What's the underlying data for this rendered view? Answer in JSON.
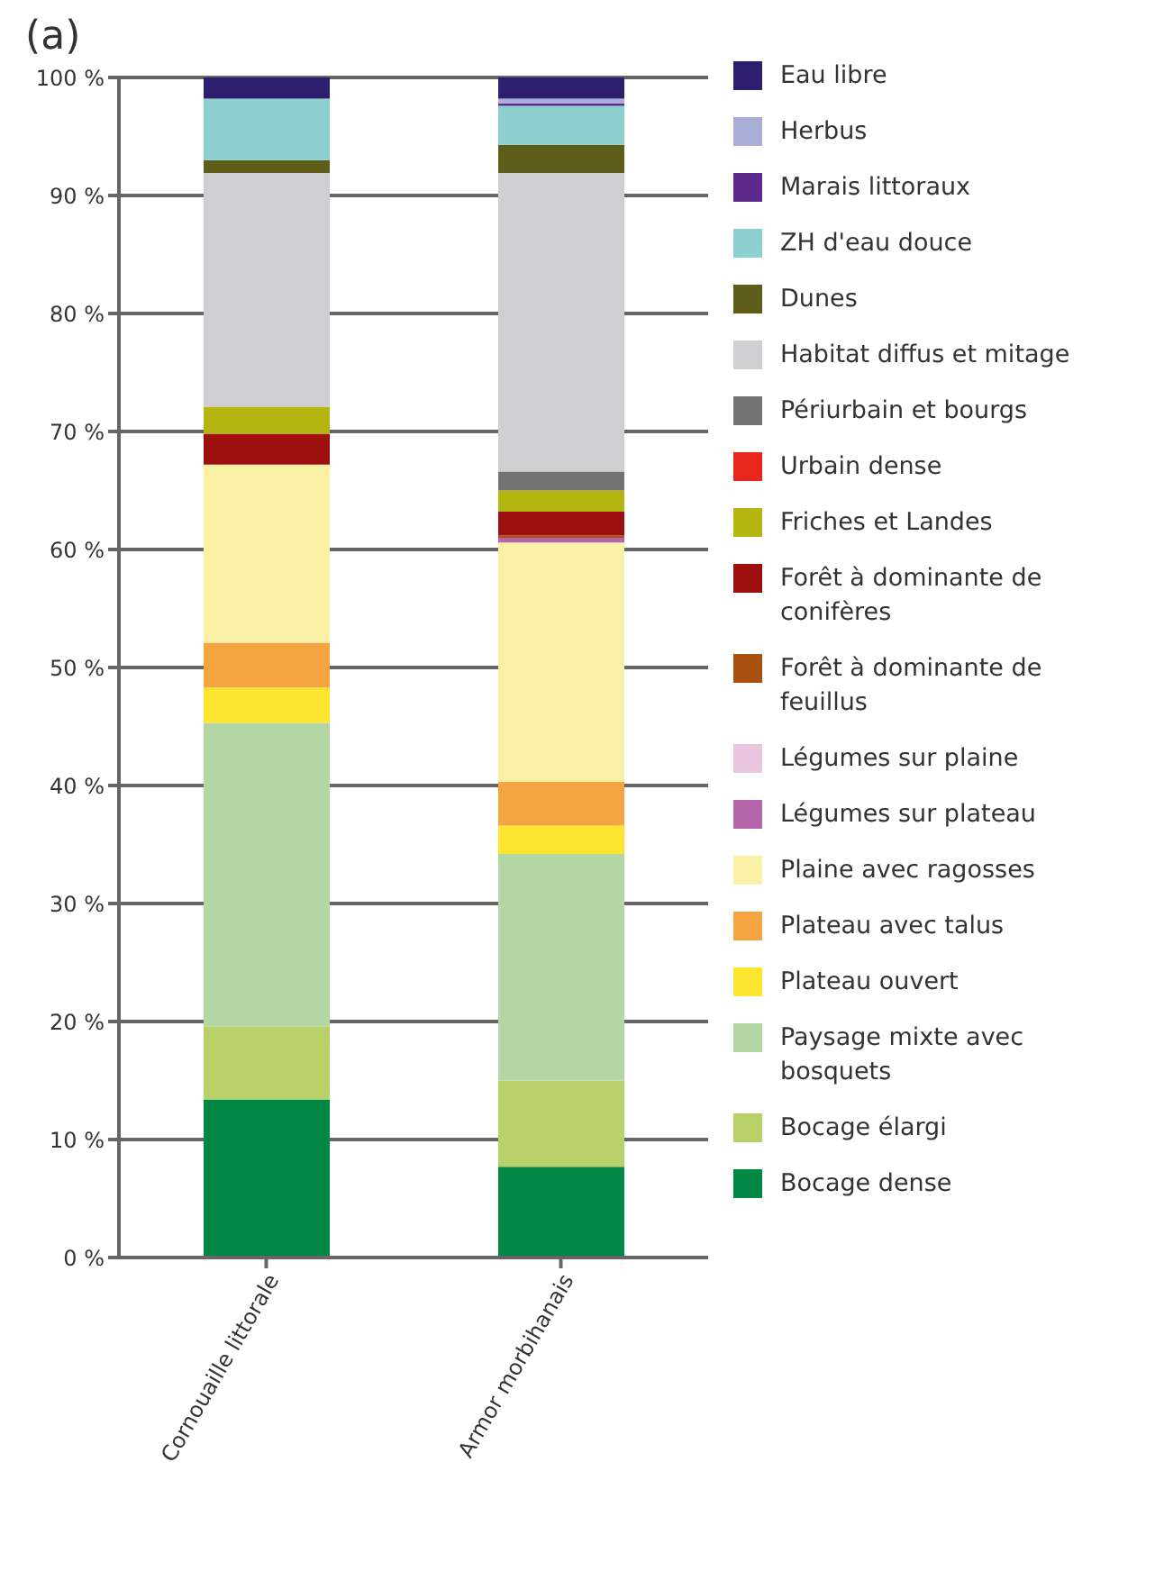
{
  "chart_data": {
    "type": "bar",
    "title": "(a)",
    "stacked": true,
    "categories": [
      "Cornouaille littorale",
      "Armor morbihanais"
    ],
    "ylim": [
      0,
      100
    ],
    "yticks": [
      {
        "value": 0,
        "label": "0 %"
      },
      {
        "value": 10,
        "label": "10 %"
      },
      {
        "value": 20,
        "label": "20 %"
      },
      {
        "value": 30,
        "label": "30 %"
      },
      {
        "value": 40,
        "label": "40 %"
      },
      {
        "value": 50,
        "label": "50 %"
      },
      {
        "value": 60,
        "label": "60 %"
      },
      {
        "value": 70,
        "label": "70 %"
      },
      {
        "value": 80,
        "label": "80 %"
      },
      {
        "value": 90,
        "label": "90 %"
      },
      {
        "value": 100,
        "label": "100 %"
      }
    ],
    "grid": "y",
    "legend": "right",
    "series": [
      {
        "name": "Bocage dense",
        "color": "#008744",
        "values": [
          13.4,
          7.7
        ]
      },
      {
        "name": "Bocage élargi",
        "color": "#b8d16a",
        "values": [
          6.2,
          7.3
        ]
      },
      {
        "name": "Paysage mixte avec bosquets",
        "color": "#b3d6a4",
        "values": [
          25.7,
          19.2
        ]
      },
      {
        "name": "Plateau ouvert",
        "color": "#fde52f",
        "values": [
          3.0,
          2.4
        ]
      },
      {
        "name": "Plateau avec talus",
        "color": "#f5a442",
        "values": [
          3.8,
          3.7
        ]
      },
      {
        "name": "Plaine avec ragosses",
        "color": "#fbf1a6",
        "values": [
          15.1,
          20.3
        ]
      },
      {
        "name": "Légumes sur plateau",
        "color": "#b566aa",
        "values": [
          0,
          0.4
        ]
      },
      {
        "name": "Légumes sur plaine",
        "color": "#e8c6e0",
        "values": [
          0,
          0
        ]
      },
      {
        "name": "Forêt à dominante de feuillus",
        "color": "#a8500e",
        "values": [
          0,
          0.2
        ]
      },
      {
        "name": "Forêt à dominante de conifères",
        "color": "#9e1010",
        "values": [
          2.6,
          2.0
        ]
      },
      {
        "name": "Friches et Landes",
        "color": "#b5b512",
        "values": [
          2.3,
          1.8
        ]
      },
      {
        "name": "Urbain dense",
        "color": "#e8261e",
        "values": [
          0,
          0
        ]
      },
      {
        "name": "Périurbain et bourgs",
        "color": "#737373",
        "values": [
          0,
          1.6
        ]
      },
      {
        "name": "Habitat diffus et mitage",
        "color": "#cfcfd1",
        "values": [
          19.8,
          25.3
        ]
      },
      {
        "name": "Dunes",
        "color": "#5e5e1a",
        "values": [
          1.1,
          2.4
        ]
      },
      {
        "name": "ZH d'eau douce",
        "color": "#8ccfcf",
        "values": [
          5.2,
          3.3
        ]
      },
      {
        "name": "Marais littoraux",
        "color": "#5b2a8c",
        "values": [
          0,
          0.2
        ]
      },
      {
        "name": "Herbus",
        "color": "#a9aed6",
        "values": [
          0,
          0.4
        ]
      },
      {
        "name": "Eau libre",
        "color": "#2e1f6e",
        "values": [
          1.8,
          1.8
        ]
      }
    ]
  }
}
